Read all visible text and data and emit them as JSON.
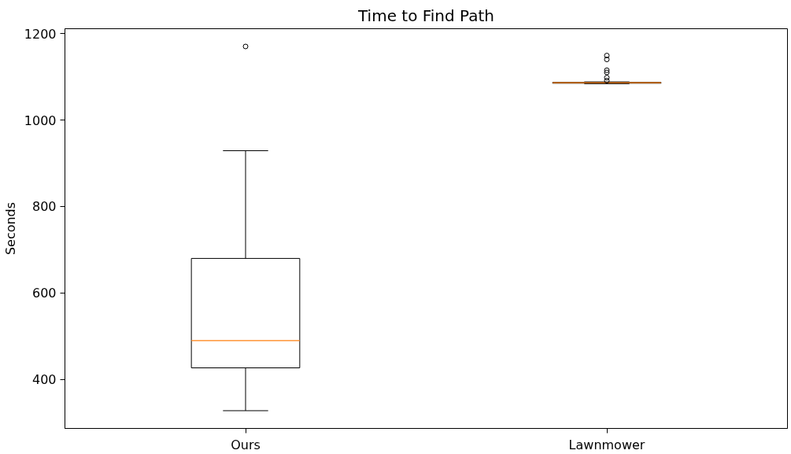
{
  "chart_data": {
    "type": "box",
    "title": "Time to Find Path",
    "ylabel": "Seconds",
    "categories": [
      "Ours",
      "Lawnmower"
    ],
    "boxes": [
      {
        "low": 328,
        "q1": 427,
        "median": 490,
        "q3": 680,
        "high": 929,
        "outliers": [
          1170
        ]
      },
      {
        "low": 1084,
        "q1": 1085,
        "median": 1086,
        "q3": 1087,
        "high": 1088,
        "outliers": [
          1091,
          1098,
          1110,
          1115,
          1140,
          1149
        ]
      }
    ],
    "color": "#000000",
    "ylim": [
      287,
      1211
    ],
    "yticks": [
      400,
      600,
      800,
      1000,
      1200
    ],
    "grid": false,
    "marker": "circle"
  }
}
